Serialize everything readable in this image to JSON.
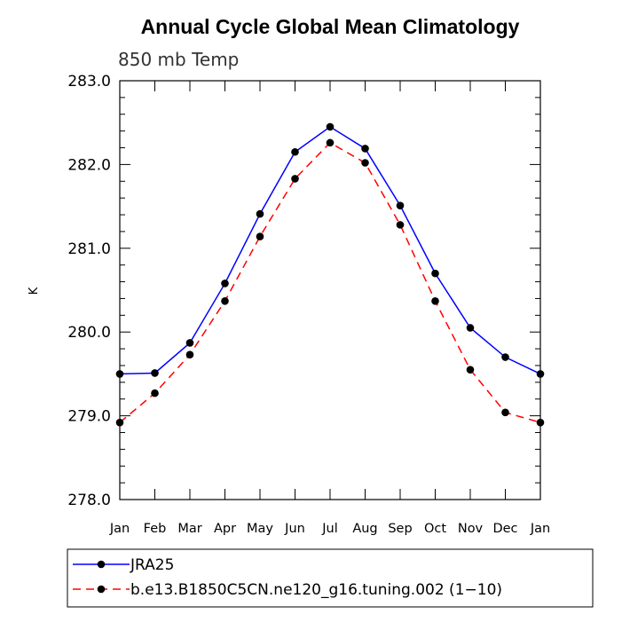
{
  "chart_data": {
    "type": "line",
    "title": "Annual Cycle Global Mean Climatology",
    "subtitle": "850 mb Temp",
    "xlabel": "",
    "ylabel": "K",
    "categories": [
      "Jan",
      "Feb",
      "Mar",
      "Apr",
      "May",
      "Jun",
      "Jul",
      "Aug",
      "Sep",
      "Oct",
      "Nov",
      "Dec",
      "Jan"
    ],
    "ylim": [
      278.0,
      283.0
    ],
    "yticks": [
      "278.0",
      "279.0",
      "280.0",
      "281.0",
      "282.0",
      "283.0"
    ],
    "grid": false,
    "legend_position": "bottom",
    "series": [
      {
        "name": "JRA25",
        "color": "#0000ff",
        "style": "solid",
        "marker": "filled-circle",
        "values": [
          279.5,
          279.51,
          279.87,
          280.58,
          281.41,
          282.15,
          282.45,
          282.19,
          281.51,
          280.7,
          280.05,
          279.7,
          279.5
        ]
      },
      {
        "name": "b.e13.B1850C5CN.ne120_g16.tuning.002 (1−10)",
        "color": "#ff0000",
        "style": "dashed",
        "marker": "filled-circle",
        "values": [
          278.92,
          279.27,
          279.73,
          280.37,
          281.14,
          281.83,
          282.26,
          282.02,
          281.28,
          280.37,
          279.55,
          279.04,
          278.92
        ]
      }
    ]
  }
}
